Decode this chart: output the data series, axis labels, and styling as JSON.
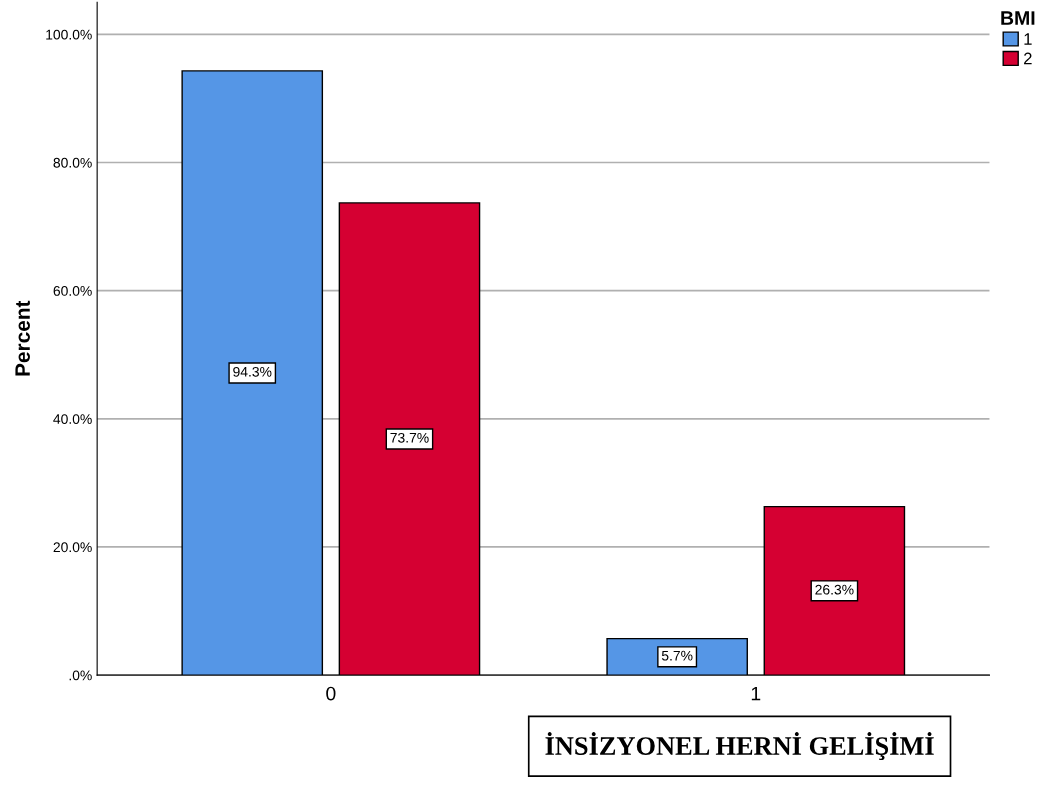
{
  "chart_data": {
    "type": "bar",
    "categories": [
      "0",
      "1"
    ],
    "series": [
      {
        "name": "1",
        "color": "#5596e6",
        "values": [
          94.3,
          5.7
        ],
        "value_labels": [
          "94.3%",
          "5.7%"
        ]
      },
      {
        "name": "2",
        "color": "#d50032",
        "values": [
          73.7,
          26.3
        ],
        "value_labels": [
          "73.7%",
          "26.3%"
        ]
      }
    ],
    "ylabel": "Percent",
    "xlabel": "İNSİZYONEL HERNİ GELİŞİMİ",
    "legend_title": "BMI",
    "legend": "top right",
    "ylim": [
      0,
      105
    ],
    "yticks": [
      {
        "value": 0,
        "label": ".0%"
      },
      {
        "value": 20,
        "label": "20.0%"
      },
      {
        "value": 40,
        "label": "40.0%"
      },
      {
        "value": 60,
        "label": "60.0%"
      },
      {
        "value": 80,
        "label": "80.0%"
      },
      {
        "value": 100,
        "label": "100.0%"
      }
    ],
    "grid": "y"
  }
}
